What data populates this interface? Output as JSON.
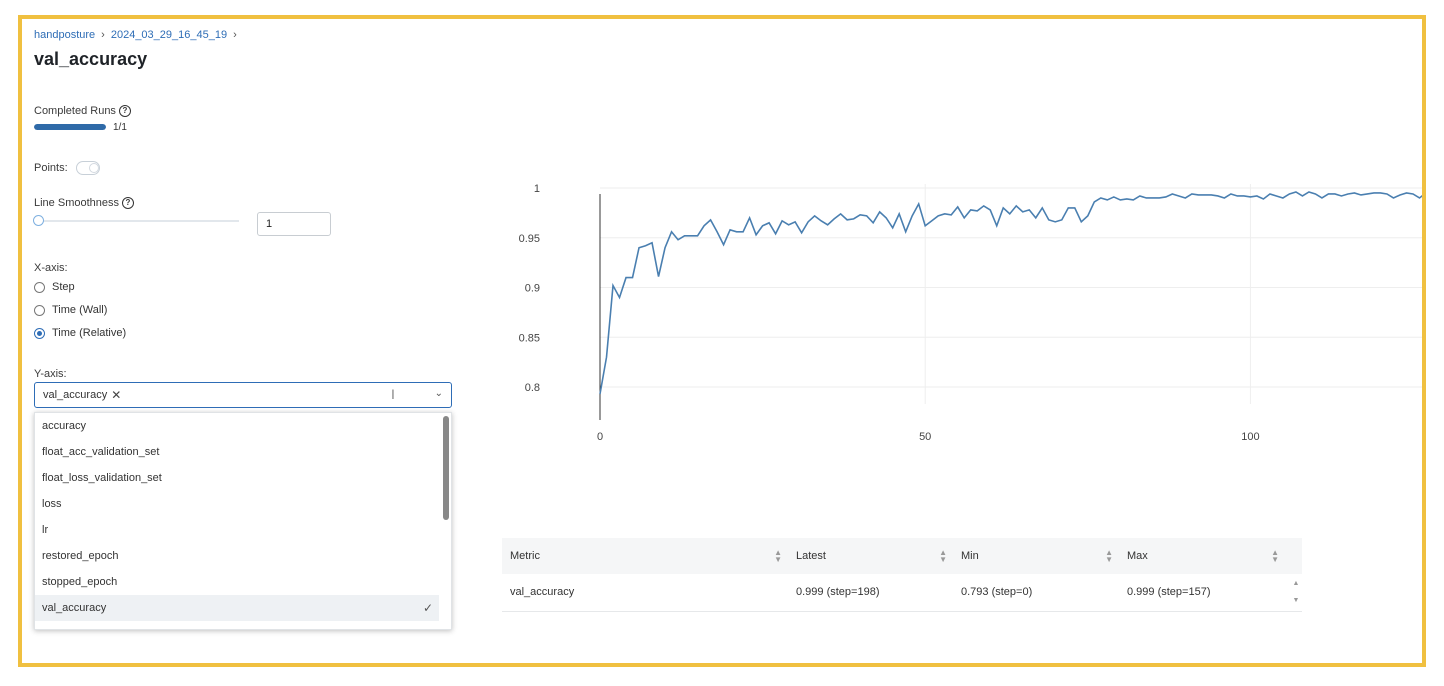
{
  "breadcrumb": {
    "project": "handposture",
    "run": "2024_03_29_16_45_19",
    "separator": "›"
  },
  "title": "val_accuracy",
  "completed_runs": {
    "label": "Completed Runs",
    "count": "1/1",
    "progress": 1.0
  },
  "points": {
    "label": "Points:",
    "enabled": false
  },
  "line_smoothness": {
    "label": "Line Smoothness",
    "value": "1",
    "slider_fraction": 0
  },
  "x_axis": {
    "label": "X-axis:",
    "options": [
      "Step",
      "Time (Wall)",
      "Time (Relative)"
    ],
    "selected": "Time (Relative)"
  },
  "y_axis": {
    "label": "Y-axis:",
    "selected_chip": "val_accuracy",
    "chip_remove": "✕",
    "caret": "⌄",
    "options": [
      "accuracy",
      "float_acc_validation_set",
      "float_loss_validation_set",
      "loss",
      "lr",
      "restored_epoch",
      "stopped_epoch",
      "val_accuracy"
    ],
    "checkmark": "✓"
  },
  "colors": {
    "accent": "#2e6db6",
    "line": "#4a7fb0",
    "frame": "#f0c040"
  },
  "chart_data": {
    "type": "line",
    "title": "",
    "xlabel": "",
    "ylabel": "",
    "xlim": [
      0,
      127
    ],
    "ylim": [
      0.787,
      1.0
    ],
    "x_ticks": [
      "0",
      "50",
      "100"
    ],
    "y_ticks": [
      "1",
      "0.95",
      "0.9",
      "0.85",
      "0.8"
    ],
    "grid": true,
    "series": [
      {
        "values": [
          0.793,
          0.83,
          0.902,
          0.89,
          0.91,
          0.91,
          0.94,
          0.942,
          0.945,
          0.911,
          0.94,
          0.956,
          0.948,
          0.952,
          0.952,
          0.952,
          0.962,
          0.968,
          0.956,
          0.943,
          0.958,
          0.956,
          0.956,
          0.97,
          0.953,
          0.962,
          0.965,
          0.954,
          0.967,
          0.963,
          0.966,
          0.955,
          0.966,
          0.972,
          0.967,
          0.963,
          0.969,
          0.974,
          0.968,
          0.969,
          0.973,
          0.972,
          0.965,
          0.976,
          0.97,
          0.96,
          0.974,
          0.956,
          0.972,
          0.984,
          0.962,
          0.967,
          0.972,
          0.974,
          0.973,
          0.981,
          0.97,
          0.978,
          0.977,
          0.982,
          0.978,
          0.962,
          0.98,
          0.974,
          0.982,
          0.976,
          0.978,
          0.97,
          0.98,
          0.968,
          0.966,
          0.968,
          0.98,
          0.98,
          0.966,
          0.972,
          0.986,
          0.99,
          0.988,
          0.991,
          0.988,
          0.989,
          0.988,
          0.992,
          0.99,
          0.99,
          0.99,
          0.991,
          0.994,
          0.992,
          0.99,
          0.994,
          0.993,
          0.993,
          0.993,
          0.992,
          0.99,
          0.994,
          0.992,
          0.992,
          0.991,
          0.992,
          0.989,
          0.994,
          0.992,
          0.99,
          0.994,
          0.996,
          0.992,
          0.996,
          0.994,
          0.99,
          0.994,
          0.994,
          0.992,
          0.994,
          0.995,
          0.993,
          0.994,
          0.995,
          0.995,
          0.994,
          0.99,
          0.993,
          0.995,
          0.994,
          0.99,
          0.995
        ]
      }
    ]
  },
  "table": {
    "columns": [
      "Metric",
      "Latest",
      "Min",
      "Max"
    ],
    "rows": [
      {
        "metric": "val_accuracy",
        "latest": "0.999 (step=198)",
        "min": "0.793 (step=0)",
        "max": "0.999 (step=157)"
      }
    ]
  }
}
